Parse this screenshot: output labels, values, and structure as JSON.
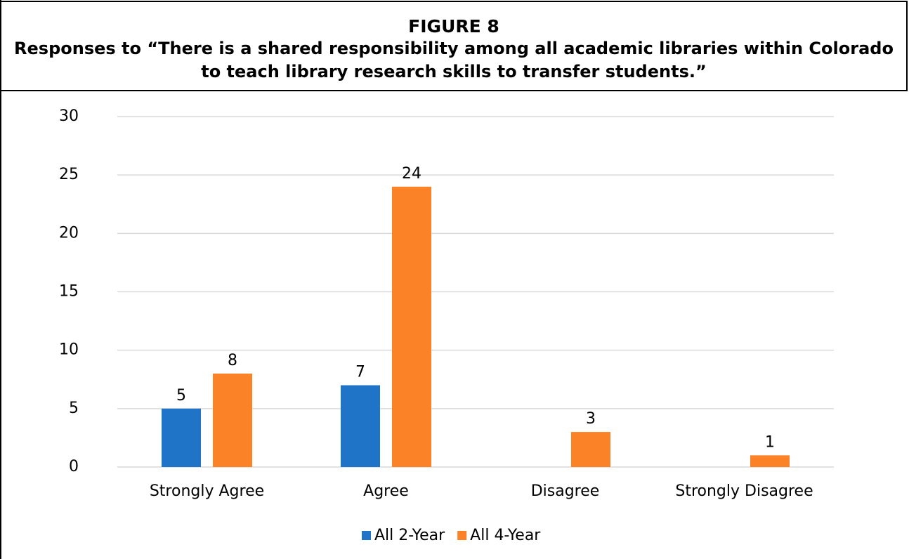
{
  "chart_data": {
    "type": "bar",
    "title": "FIGURE 8",
    "subtitle": "Responses to “There is a shared responsibility among all academic libraries within Colorado to teach library research skills to transfer students.”",
    "categories": [
      "Strongly Agree",
      "Agree",
      "Disagree",
      "Strongly Disagree"
    ],
    "series": [
      {
        "name": "All 2-Year",
        "color": "#1f74c7",
        "values": [
          5,
          7,
          null,
          null
        ]
      },
      {
        "name": "All 4-Year",
        "color": "#fb8227",
        "values": [
          8,
          24,
          3,
          1
        ]
      }
    ],
    "ylim": [
      0,
      30
    ],
    "yticks": [
      0,
      5,
      10,
      15,
      20,
      25,
      30
    ],
    "grid": true,
    "legend": "bottom"
  }
}
